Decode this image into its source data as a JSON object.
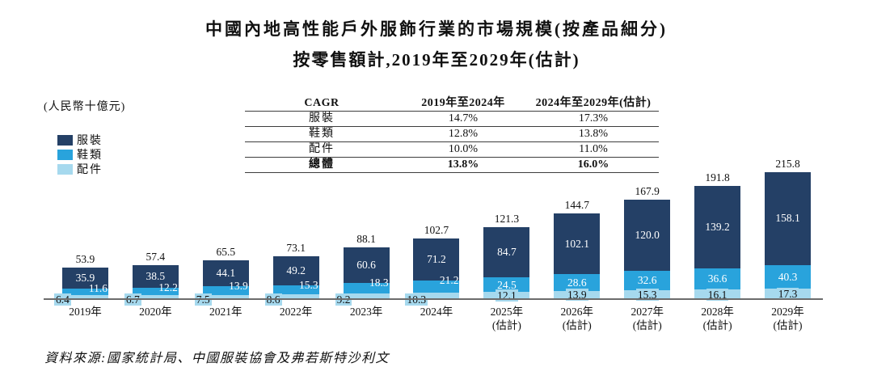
{
  "title": {
    "line1": "中國內地高性能戶外服飾行業的市場規模(按產品細分)",
    "line2": "按零售額計,2019年至2029年(估計)"
  },
  "unit_label": "(人民幣十億元)",
  "legend": {
    "items": [
      {
        "name": "clothing",
        "label": "服裝",
        "color": "#244066"
      },
      {
        "name": "footwear",
        "label": "鞋類",
        "color": "#29A3DC"
      },
      {
        "name": "accessories",
        "label": "配件",
        "color": "#A6D9EE"
      }
    ]
  },
  "cagr_table": {
    "headers": [
      "CAGR",
      "2019年至2024年",
      "2024年至2029年(估計)"
    ],
    "rows": [
      {
        "label": "服裝",
        "values": [
          "14.7%",
          "17.3%"
        ],
        "bold": false
      },
      {
        "label": "鞋類",
        "values": [
          "12.8%",
          "13.8%"
        ],
        "bold": false
      },
      {
        "label": "配件",
        "values": [
          "10.0%",
          "11.0%"
        ],
        "bold": false
      },
      {
        "label": "總體",
        "values": [
          "13.8%",
          "16.0%"
        ],
        "bold": true
      }
    ]
  },
  "chart_data": {
    "type": "bar",
    "stacked": true,
    "title": "中國內地高性能戶外服飾行業的市場規模(按產品細分),按零售額計,2019年至2029年(估計)",
    "ylabel": "(人民幣十億元)",
    "grid": false,
    "legend_position": "left",
    "categories": [
      {
        "label": "2019年",
        "sub": ""
      },
      {
        "label": "2020年",
        "sub": ""
      },
      {
        "label": "2021年",
        "sub": ""
      },
      {
        "label": "2022年",
        "sub": ""
      },
      {
        "label": "2023年",
        "sub": ""
      },
      {
        "label": "2024年",
        "sub": ""
      },
      {
        "label": "2025年",
        "sub": "(估計)"
      },
      {
        "label": "2026年",
        "sub": "(估計)"
      },
      {
        "label": "2027年",
        "sub": "(估計)"
      },
      {
        "label": "2028年",
        "sub": "(估計)"
      },
      {
        "label": "2029年",
        "sub": "(估計)"
      }
    ],
    "series": [
      {
        "name": "服裝",
        "color": "#244066",
        "values": [
          35.9,
          38.5,
          44.1,
          49.2,
          60.6,
          71.2,
          84.7,
          102.1,
          120.0,
          139.2,
          158.1
        ]
      },
      {
        "name": "鞋類",
        "color": "#29A3DC",
        "values": [
          11.6,
          12.2,
          13.9,
          15.3,
          18.3,
          21.2,
          24.5,
          28.6,
          32.6,
          36.6,
          40.3
        ]
      },
      {
        "name": "配件",
        "color": "#A6D9EE",
        "values": [
          6.4,
          6.7,
          7.5,
          8.6,
          9.2,
          10.3,
          12.1,
          13.9,
          15.3,
          16.1,
          17.3
        ]
      }
    ],
    "totals": [
      53.9,
      57.4,
      65.5,
      73.1,
      88.1,
      102.7,
      121.3,
      144.7,
      167.9,
      191.8,
      215.8
    ],
    "axis_color": "#6c6c6c",
    "pixels_per_unit": 0.73,
    "offset_label_years": 6
  },
  "source": "資料來源:國家統計局、中國服裝協會及弗若斯特沙利文"
}
